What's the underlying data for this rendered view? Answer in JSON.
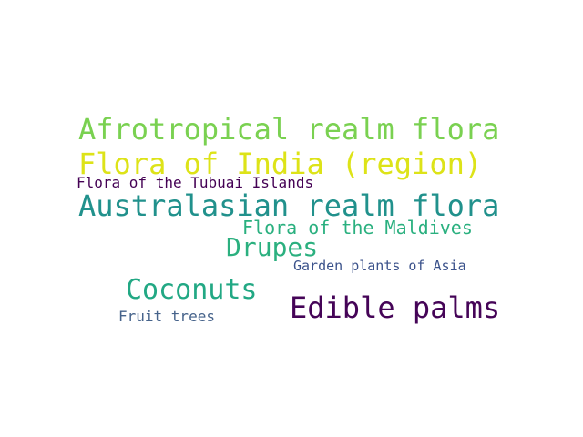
{
  "words": [
    {
      "text": "Afrotropical realm flora",
      "color": "#7ad151"
    },
    {
      "text": "Flora of India (region)",
      "color": "#dde318"
    },
    {
      "text": "Flora of the Tubuai Islands",
      "color": "#440154"
    },
    {
      "text": "Australasian realm flora",
      "color": "#21918c"
    },
    {
      "text": "Flora of the Maldives",
      "color": "#2ab07f"
    },
    {
      "text": "Drupes",
      "color": "#2bb07f"
    },
    {
      "text": "Garden plants of Asia",
      "color": "#3b528b"
    },
    {
      "text": "Coconuts",
      "color": "#22a884"
    },
    {
      "text": "Edible palms",
      "color": "#450457"
    },
    {
      "text": "Fruit trees",
      "color": "#46638b"
    }
  ]
}
